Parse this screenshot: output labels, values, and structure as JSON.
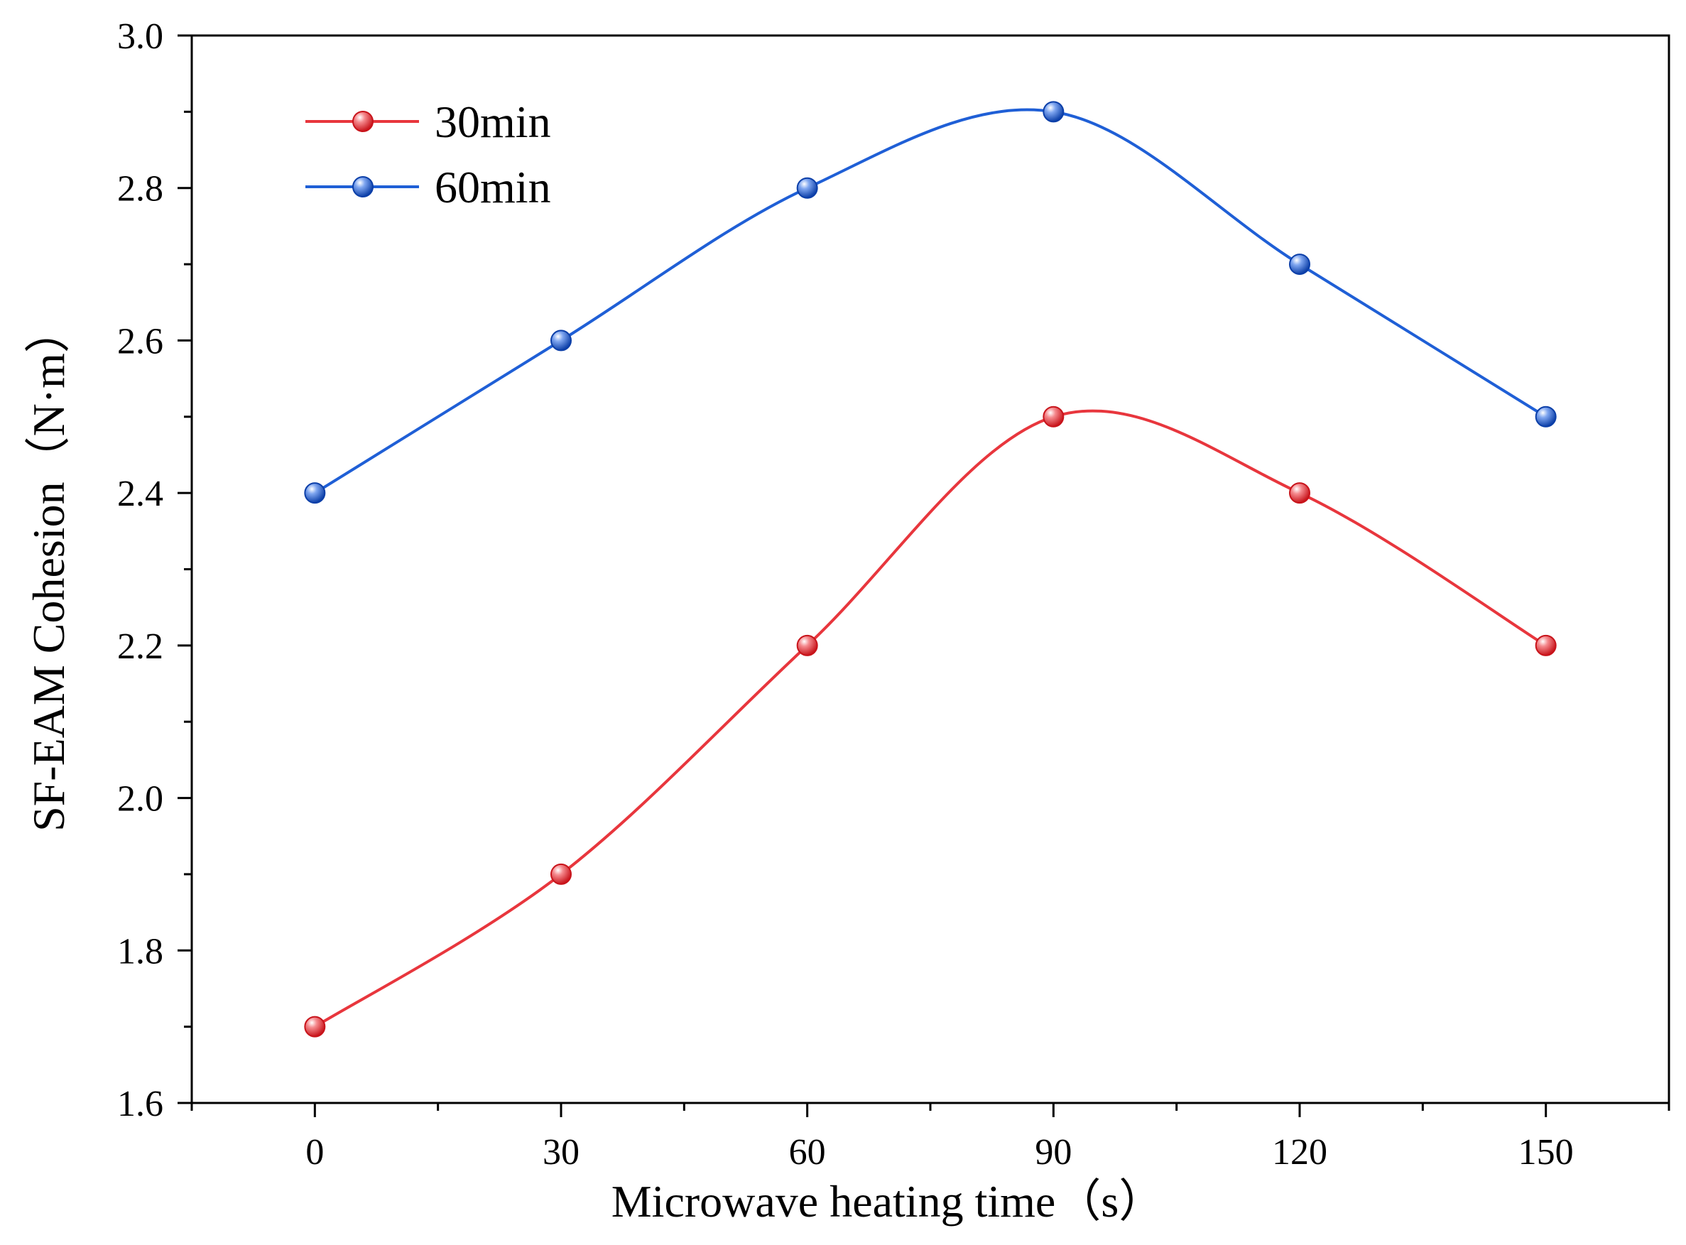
{
  "chart_data": {
    "type": "line",
    "title": "",
    "xlabel": "Microwave heating time（s）",
    "ylabel": "SF-EAM Cohesion（N·m）",
    "xlim": [
      -15,
      165
    ],
    "ylim": [
      1.6,
      3.0
    ],
    "x_ticks": [
      0,
      30,
      60,
      90,
      120,
      150
    ],
    "x_tick_labels": [
      "0",
      "30",
      "60",
      "90",
      "120",
      "150"
    ],
    "y_ticks": [
      1.6,
      1.8,
      2.0,
      2.2,
      2.4,
      2.6,
      2.8,
      3.0
    ],
    "y_tick_labels": [
      "1.6",
      "1.8",
      "2.0",
      "2.2",
      "2.4",
      "2.6",
      "2.8",
      "3.0"
    ],
    "x": [
      0,
      30,
      60,
      90,
      120,
      150
    ],
    "series": [
      {
        "name": "30min",
        "color": "#e8363d",
        "values": [
          1.7,
          1.9,
          2.2,
          2.5,
          2.4,
          2.2
        ]
      },
      {
        "name": "60min",
        "color": "#1f5fd6",
        "values": [
          2.4,
          2.6,
          2.8,
          2.9,
          2.7,
          2.5
        ]
      }
    ],
    "smooth": true,
    "grid": false,
    "legend": "top-left"
  }
}
